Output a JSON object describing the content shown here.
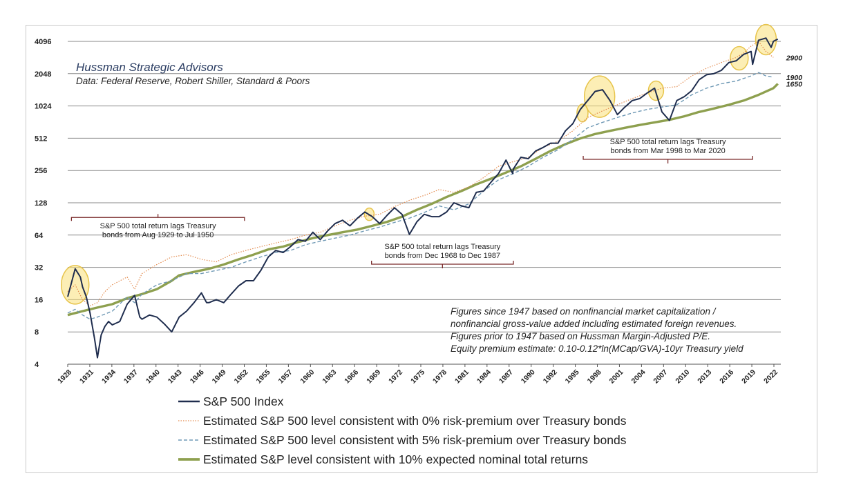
{
  "chart_data": {
    "type": "line",
    "title": "Hussman Strategic Advisors",
    "subtitle": "Data: Federal Reserve, Robert Shiller, Standard & Poors",
    "y_scale": "log2",
    "ylim": [
      4,
      4096
    ],
    "y_ticks": [
      {
        "value": 4096,
        "label": "4096"
      },
      {
        "value": 2048,
        "label": "2048"
      },
      {
        "value": 1024,
        "label": "1024"
      },
      {
        "value": 512,
        "label": "512"
      },
      {
        "value": 256,
        "label": "256"
      },
      {
        "value": 128,
        "label": "128"
      },
      {
        "value": 64,
        "label": "64"
      },
      {
        "value": 32,
        "label": "32"
      },
      {
        "value": 16,
        "label": "16"
      },
      {
        "value": 8,
        "label": "8"
      },
      {
        "value": 4,
        "label": "4"
      }
    ],
    "xlim": [
      1928,
      2024
    ],
    "x_ticks": [
      "1928",
      "1931",
      "1934",
      "1937",
      "1940",
      "1943",
      "1946",
      "1949",
      "1952",
      "1955",
      "1957",
      "1960",
      "1963",
      "1966",
      "1969",
      "1972",
      "1975",
      "1978",
      "1981",
      "1984",
      "1987",
      "1990",
      "1992",
      "1995",
      "1998",
      "2001",
      "2004",
      "2007",
      "2010",
      "2013",
      "2016",
      "2019",
      "2022"
    ],
    "series": [
      {
        "name": "S&P 500 Index",
        "color": "#1f2d4e",
        "style": "solid",
        "points": [
          [
            1928,
            17
          ],
          [
            1929,
            31
          ],
          [
            1929.7,
            26
          ],
          [
            1930,
            21
          ],
          [
            1930.5,
            17
          ],
          [
            1931,
            12
          ],
          [
            1931.6,
            7
          ],
          [
            1932,
            4.6
          ],
          [
            1932.5,
            7.5
          ],
          [
            1933,
            9
          ],
          [
            1933.5,
            10
          ],
          [
            1934,
            9.3
          ],
          [
            1935,
            10
          ],
          [
            1936,
            14.5
          ],
          [
            1937,
            17.5
          ],
          [
            1937.7,
            11
          ],
          [
            1938,
            10.5
          ],
          [
            1939,
            11.5
          ],
          [
            1940,
            11
          ],
          [
            1941,
            9.5
          ],
          [
            1942,
            8
          ],
          [
            1943,
            11
          ],
          [
            1944,
            12.5
          ],
          [
            1945,
            15
          ],
          [
            1946,
            18.5
          ],
          [
            1946.7,
            15
          ],
          [
            1947,
            15
          ],
          [
            1948,
            16
          ],
          [
            1949,
            15
          ],
          [
            1950,
            18
          ],
          [
            1951,
            21.5
          ],
          [
            1952,
            24
          ],
          [
            1953,
            24
          ],
          [
            1954,
            30
          ],
          [
            1955,
            40
          ],
          [
            1956,
            46
          ],
          [
            1957,
            44
          ],
          [
            1958,
            50
          ],
          [
            1959,
            58
          ],
          [
            1960,
            56
          ],
          [
            1961,
            68
          ],
          [
            1962,
            58
          ],
          [
            1963,
            70
          ],
          [
            1964,
            82
          ],
          [
            1965,
            88
          ],
          [
            1966,
            78
          ],
          [
            1967,
            92
          ],
          [
            1968,
            105
          ],
          [
            1969,
            95
          ],
          [
            1970,
            82
          ],
          [
            1971,
            98
          ],
          [
            1972,
            115
          ],
          [
            1973,
            100
          ],
          [
            1974,
            65
          ],
          [
            1975,
            85
          ],
          [
            1976,
            100
          ],
          [
            1977,
            95
          ],
          [
            1978,
            95
          ],
          [
            1979,
            105
          ],
          [
            1980,
            128
          ],
          [
            1981,
            120
          ],
          [
            1982,
            115
          ],
          [
            1983,
            160
          ],
          [
            1984,
            165
          ],
          [
            1985,
            200
          ],
          [
            1986,
            240
          ],
          [
            1987,
            320
          ],
          [
            1987.9,
            240
          ],
          [
            1988,
            265
          ],
          [
            1989,
            340
          ],
          [
            1990,
            330
          ],
          [
            1991,
            390
          ],
          [
            1992,
            420
          ],
          [
            1993,
            460
          ],
          [
            1994,
            460
          ],
          [
            1995,
            600
          ],
          [
            1996,
            700
          ],
          [
            1997,
            950
          ],
          [
            1998,
            1150
          ],
          [
            1999,
            1400
          ],
          [
            2000,
            1450
          ],
          [
            2001,
            1150
          ],
          [
            2002,
            850
          ],
          [
            2003,
            1000
          ],
          [
            2004,
            1150
          ],
          [
            2005,
            1200
          ],
          [
            2006,
            1350
          ],
          [
            2007,
            1500
          ],
          [
            2008,
            900
          ],
          [
            2009,
            750
          ],
          [
            2010,
            1150
          ],
          [
            2011,
            1250
          ],
          [
            2012,
            1420
          ],
          [
            2013,
            1800
          ],
          [
            2014,
            2000
          ],
          [
            2015,
            2050
          ],
          [
            2016,
            2200
          ],
          [
            2017,
            2600
          ],
          [
            2018,
            2700
          ],
          [
            2019,
            3100
          ],
          [
            2020,
            3300
          ],
          [
            2020.2,
            2500
          ],
          [
            2021,
            4200
          ],
          [
            2022,
            4400
          ],
          [
            2022.7,
            3600
          ],
          [
            2023,
            4100
          ],
          [
            2023.6,
            4300
          ]
        ]
      },
      {
        "name": "Estimated S&P 500 level consistent with 0% risk-premium over Treasury bonds",
        "color": "#e38b4e",
        "style": "dotted",
        "points": [
          [
            1928,
            19
          ],
          [
            1929,
            22
          ],
          [
            1930,
            16
          ],
          [
            1931,
            14
          ],
          [
            1932,
            15
          ],
          [
            1933,
            19
          ],
          [
            1934,
            22
          ],
          [
            1936,
            26
          ],
          [
            1937,
            20
          ],
          [
            1938,
            28
          ],
          [
            1940,
            34
          ],
          [
            1942,
            40
          ],
          [
            1944,
            42
          ],
          [
            1946,
            38
          ],
          [
            1948,
            36
          ],
          [
            1950,
            42
          ],
          [
            1952,
            46
          ],
          [
            1954,
            50
          ],
          [
            1956,
            54
          ],
          [
            1958,
            58
          ],
          [
            1960,
            64
          ],
          [
            1962,
            68
          ],
          [
            1964,
            78
          ],
          [
            1966,
            88
          ],
          [
            1968,
            96
          ],
          [
            1970,
            100
          ],
          [
            1972,
            118
          ],
          [
            1974,
            135
          ],
          [
            1976,
            150
          ],
          [
            1978,
            170
          ],
          [
            1980,
            160
          ],
          [
            1982,
            180
          ],
          [
            1984,
            220
          ],
          [
            1986,
            280
          ],
          [
            1988,
            310
          ],
          [
            1990,
            340
          ],
          [
            1992,
            420
          ],
          [
            1994,
            480
          ],
          [
            1996,
            600
          ],
          [
            1998,
            800
          ],
          [
            2000,
            920
          ],
          [
            2002,
            1050
          ],
          [
            2004,
            1200
          ],
          [
            2006,
            1350
          ],
          [
            2008,
            1500
          ],
          [
            2010,
            1550
          ],
          [
            2012,
            1950
          ],
          [
            2014,
            2300
          ],
          [
            2016,
            2600
          ],
          [
            2018,
            2900
          ],
          [
            2019,
            3200
          ],
          [
            2020,
            3700
          ],
          [
            2021,
            4100
          ],
          [
            2022,
            3300
          ],
          [
            2023,
            2900
          ]
        ]
      },
      {
        "name": "Estimated S&P 500 level consistent with 5% risk-premium over Treasury bonds",
        "color": "#6f99b5",
        "style": "dashed",
        "points": [
          [
            1928,
            12
          ],
          [
            1929,
            13
          ],
          [
            1930,
            11.5
          ],
          [
            1931,
            10.5
          ],
          [
            1932,
            11
          ],
          [
            1934,
            12.5
          ],
          [
            1936,
            17
          ],
          [
            1937,
            15
          ],
          [
            1938,
            18
          ],
          [
            1940,
            22
          ],
          [
            1942,
            24
          ],
          [
            1944,
            28
          ],
          [
            1946,
            28
          ],
          [
            1948,
            30
          ],
          [
            1950,
            32
          ],
          [
            1952,
            36
          ],
          [
            1954,
            40
          ],
          [
            1956,
            44
          ],
          [
            1958,
            46
          ],
          [
            1960,
            52
          ],
          [
            1962,
            56
          ],
          [
            1964,
            60
          ],
          [
            1966,
            64
          ],
          [
            1968,
            70
          ],
          [
            1970,
            76
          ],
          [
            1972,
            84
          ],
          [
            1974,
            92
          ],
          [
            1976,
            104
          ],
          [
            1978,
            120
          ],
          [
            1980,
            110
          ],
          [
            1982,
            125
          ],
          [
            1984,
            165
          ],
          [
            1986,
            210
          ],
          [
            1988,
            240
          ],
          [
            1990,
            280
          ],
          [
            1992,
            340
          ],
          [
            1994,
            400
          ],
          [
            1996,
            500
          ],
          [
            1998,
            640
          ],
          [
            2000,
            720
          ],
          [
            2002,
            800
          ],
          [
            2004,
            880
          ],
          [
            2006,
            950
          ],
          [
            2008,
            1000
          ],
          [
            2010,
            1050
          ],
          [
            2012,
            1300
          ],
          [
            2014,
            1500
          ],
          [
            2016,
            1650
          ],
          [
            2018,
            1750
          ],
          [
            2020,
            1950
          ],
          [
            2021,
            2100
          ],
          [
            2022,
            1950
          ],
          [
            2023,
            1900
          ]
        ]
      },
      {
        "name": "Estimated S&P level consistent with 10% expected nominal total returns",
        "color": "#8ea04f",
        "style": "solid-thick",
        "points": [
          [
            1928,
            11.5
          ],
          [
            1930,
            12.5
          ],
          [
            1932,
            13.5
          ],
          [
            1934,
            14.5
          ],
          [
            1936,
            16.5
          ],
          [
            1938,
            18
          ],
          [
            1940,
            20
          ],
          [
            1942,
            24
          ],
          [
            1943,
            27
          ],
          [
            1945,
            29
          ],
          [
            1947,
            31
          ],
          [
            1949,
            34
          ],
          [
            1951,
            38
          ],
          [
            1953,
            42
          ],
          [
            1955,
            47
          ],
          [
            1957,
            50
          ],
          [
            1959,
            55
          ],
          [
            1961,
            60
          ],
          [
            1963,
            64
          ],
          [
            1965,
            68
          ],
          [
            1967,
            72
          ],
          [
            1969,
            78
          ],
          [
            1971,
            85
          ],
          [
            1973,
            95
          ],
          [
            1975,
            110
          ],
          [
            1977,
            125
          ],
          [
            1979,
            145
          ],
          [
            1981,
            165
          ],
          [
            1983,
            190
          ],
          [
            1985,
            215
          ],
          [
            1987,
            245
          ],
          [
            1989,
            280
          ],
          [
            1991,
            330
          ],
          [
            1993,
            390
          ],
          [
            1995,
            450
          ],
          [
            1997,
            510
          ],
          [
            1999,
            560
          ],
          [
            2001,
            600
          ],
          [
            2003,
            640
          ],
          [
            2005,
            680
          ],
          [
            2007,
            720
          ],
          [
            2009,
            760
          ],
          [
            2011,
            820
          ],
          [
            2013,
            900
          ],
          [
            2015,
            970
          ],
          [
            2017,
            1050
          ],
          [
            2019,
            1150
          ],
          [
            2021,
            1300
          ],
          [
            2023,
            1500
          ],
          [
            2023.6,
            1650
          ]
        ]
      }
    ],
    "end_labels": [
      {
        "value": 2900,
        "label": "2900"
      },
      {
        "value": 1900,
        "label": "1900"
      },
      {
        "value": 1650,
        "label": "1650"
      }
    ],
    "highlight_circles": [
      {
        "year": 1929,
        "value": 22
      },
      {
        "year": 1968.6,
        "value": 100
      },
      {
        "year": 1997.3,
        "value": 880
      },
      {
        "year": 1999.6,
        "value": 1250
      },
      {
        "year": 2007.2,
        "value": 1420
      },
      {
        "year": 2018.4,
        "value": 2850
      },
      {
        "year": 2022,
        "value": 4250
      }
    ],
    "annotations": [
      {
        "lines": [
          "S&P 500 total return lags Treasury",
          "bonds from Aug 1929 to Jul 1950"
        ],
        "range": [
          1928.5,
          1951.8
        ],
        "anchor_value": 115,
        "bracket_dir": "up"
      },
      {
        "lines": [
          "S&P 500 total return lags Treasury",
          "bonds from Dec 1968 to Dec 1987"
        ],
        "range": [
          1968.9,
          1988
        ],
        "anchor_value": 40,
        "bracket_dir": "down"
      },
      {
        "lines": [
          "S&P 500 total return lags Treasury",
          "bonds from Mar 1998 to Mar 2020"
        ],
        "range": [
          1997.4,
          2020.2
        ],
        "anchor_value": 300,
        "bracket_dir": "down"
      }
    ],
    "notes": [
      "Figures since 1947 based on nonfinancial market capitalization /",
      "nonfinancial gross-value added including estimated foreign revenues.",
      "Figures prior to 1947 based on Hussman Margin-Adjusted P/E.",
      "Equity premium estimate: 0.10-0.12*ln(MCap/GVA)-10yr Treasury yield"
    ],
    "legend": [
      "S&P 500 Index",
      "Estimated S&P 500 level consistent with 0% risk-premium over Treasury bonds",
      "Estimated S&P 500 level consistent with 5% risk-premium over Treasury bonds",
      "Estimated S&P level consistent with 10% expected nominal total returns"
    ]
  }
}
